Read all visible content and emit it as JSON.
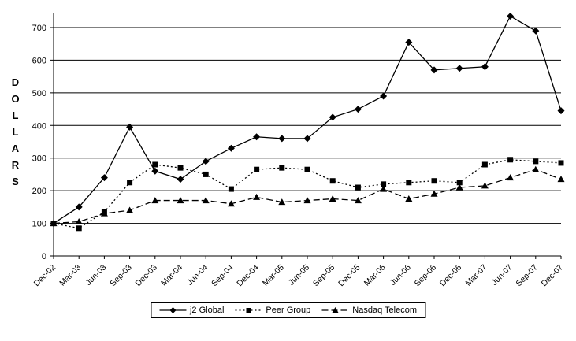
{
  "chart_data": {
    "type": "line",
    "title": "",
    "ylabel": "DOLLARS",
    "xlabel": "",
    "ylim": [
      0,
      700
    ],
    "y_ticks": [
      0,
      100,
      200,
      300,
      400,
      500,
      600,
      700
    ],
    "grid": "horizontal",
    "legend_position": "bottom-center",
    "line_color": "#000000",
    "background_color": "#ffffff",
    "categories": [
      "Dec-02",
      "Mar-03",
      "Jun-03",
      "Sep-03",
      "Dec-03",
      "Mar-04",
      "Jun-04",
      "Sep-04",
      "Dec-04",
      "Mar-05",
      "Jun-05",
      "Sep-05",
      "Dec-05",
      "Mar-06",
      "Jun-06",
      "Sep-06",
      "Dec-06",
      "Mar-07",
      "Jun-07",
      "Sep-07",
      "Dec-07"
    ],
    "series": [
      {
        "name": "j2 Global",
        "marker": "diamond",
        "line_style": "solid",
        "values": [
          100,
          150,
          240,
          395,
          260,
          235,
          290,
          330,
          365,
          360,
          360,
          425,
          450,
          490,
          655,
          570,
          575,
          580,
          735,
          690,
          445
        ]
      },
      {
        "name": "Peer Group",
        "marker": "square",
        "line_style": "dotted",
        "values": [
          100,
          85,
          135,
          225,
          280,
          270,
          250,
          205,
          265,
          270,
          265,
          230,
          210,
          220,
          225,
          230,
          225,
          280,
          295,
          290,
          285
        ]
      },
      {
        "name": "Nasdaq Telecom",
        "marker": "triangle",
        "line_style": "dashed",
        "values": [
          100,
          105,
          130,
          140,
          170,
          170,
          170,
          160,
          180,
          165,
          170,
          175,
          170,
          205,
          175,
          190,
          210,
          215,
          240,
          265,
          235
        ]
      }
    ]
  }
}
